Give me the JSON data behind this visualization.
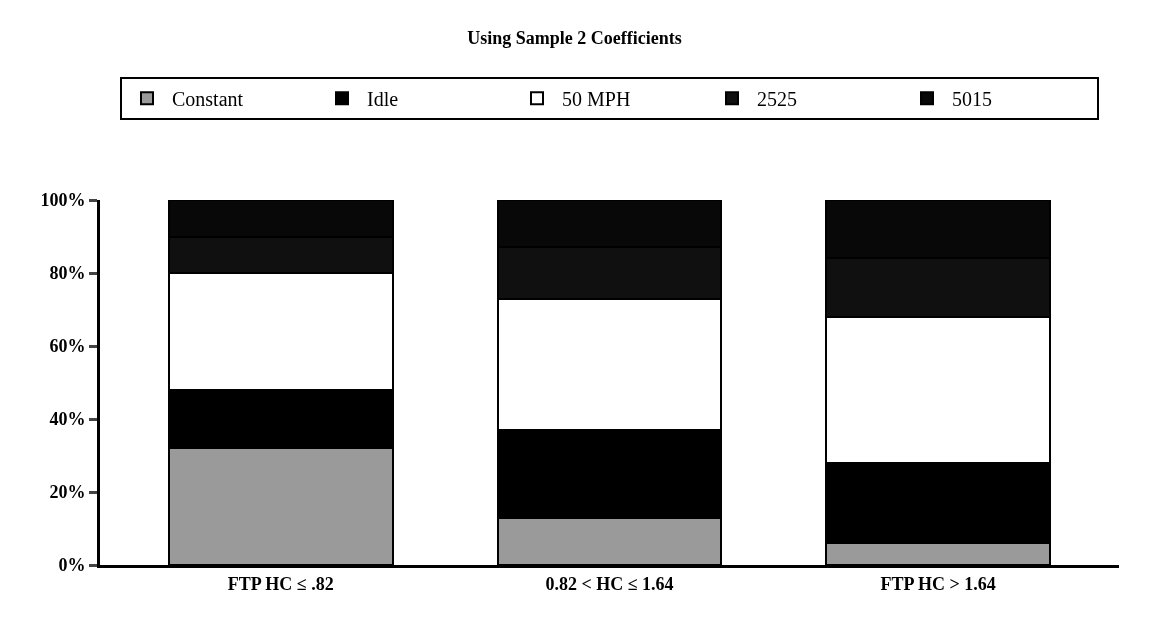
{
  "chart_data": {
    "type": "bar",
    "title": "Using Sample 2 Coefficients",
    "categories": [
      "FTP HC ≤ .82",
      "0.82 < HC ≤ 1.64",
      "FTP HC > 1.64"
    ],
    "stacked": true,
    "series": [
      {
        "name": "Constant",
        "color": "#9a9a9a",
        "values": [
          32,
          13,
          6
        ]
      },
      {
        "name": "Idle",
        "color": "#000000",
        "values": [
          16,
          24,
          22
        ]
      },
      {
        "name": "50 MPH",
        "color": "#ffffff",
        "values": [
          32,
          36,
          40
        ]
      },
      {
        "name": "2525",
        "color": "#101010",
        "values": [
          10,
          14,
          16
        ]
      },
      {
        "name": "5015",
        "color": "#080808",
        "values": [
          10,
          13,
          16
        ]
      }
    ],
    "ylim": [
      0,
      100
    ],
    "yticks": [
      {
        "value": 0,
        "label": "0%"
      },
      {
        "value": 20,
        "label": "20%"
      },
      {
        "value": 40,
        "label": "40%"
      },
      {
        "value": 60,
        "label": "60%"
      },
      {
        "value": 80,
        "label": "80%"
      },
      {
        "value": 100,
        "label": "100%"
      }
    ],
    "grid": false,
    "legend": "top"
  }
}
